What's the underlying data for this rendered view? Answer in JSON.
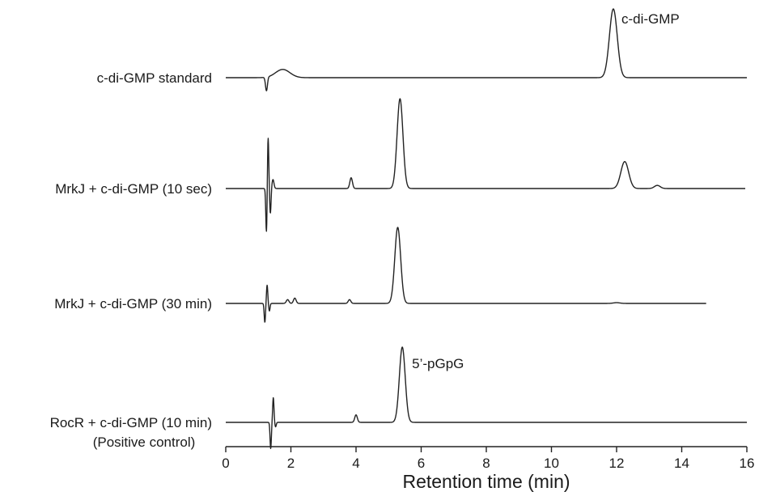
{
  "chart_data": {
    "type": "line",
    "title": "",
    "xlabel": "Retention time (min)",
    "ylabel": "",
    "xlim": [
      0,
      16
    ],
    "xticks": [
      "0",
      "2",
      "4",
      "6",
      "8",
      "10",
      "12",
      "14",
      "16"
    ],
    "grid": false,
    "series": [
      {
        "name": "c-di-GMP standard",
        "x_end": 16,
        "peaks": [
          {
            "x": 1.25,
            "height": -0.2,
            "width": 0.03
          },
          {
            "x": 1.75,
            "height": 0.12,
            "width": 0.22
          },
          {
            "x": 11.9,
            "height": 1.0,
            "width": 0.12
          }
        ]
      },
      {
        "name": "MrkJ + c-di-GMP (10 sec)",
        "x_end": 15.95,
        "peaks": [
          {
            "x": 1.25,
            "height": -0.5,
            "width": 0.02
          },
          {
            "x": 1.3,
            "height": 0.58,
            "width": 0.02
          },
          {
            "x": 1.37,
            "height": -0.28,
            "width": 0.02
          },
          {
            "x": 1.45,
            "height": 0.1,
            "width": 0.03
          },
          {
            "x": 3.85,
            "height": 0.12,
            "width": 0.04
          },
          {
            "x": 5.35,
            "height": 1.0,
            "width": 0.09
          },
          {
            "x": 12.25,
            "height": 0.3,
            "width": 0.12
          },
          {
            "x": 13.25,
            "height": 0.035,
            "width": 0.09
          }
        ]
      },
      {
        "name": "MrkJ + c-di-GMP (30 min)",
        "x_end": 14.75,
        "peaks": [
          {
            "x": 1.2,
            "height": -0.25,
            "width": 0.02
          },
          {
            "x": 1.27,
            "height": 0.24,
            "width": 0.02
          },
          {
            "x": 1.34,
            "height": -0.1,
            "width": 0.02
          },
          {
            "x": 1.9,
            "height": 0.05,
            "width": 0.04
          },
          {
            "x": 2.12,
            "height": 0.07,
            "width": 0.04
          },
          {
            "x": 3.8,
            "height": 0.05,
            "width": 0.04
          },
          {
            "x": 5.28,
            "height": 1.0,
            "width": 0.09
          },
          {
            "x": 12.0,
            "height": 0.01,
            "width": 0.1
          }
        ]
      },
      {
        "name": "RocR + c-di-GMP (10 min)",
        "x_end": 16,
        "peaks": [
          {
            "x": 1.38,
            "height": -0.35,
            "width": 0.02
          },
          {
            "x": 1.46,
            "height": 0.33,
            "width": 0.02
          },
          {
            "x": 1.53,
            "height": -0.06,
            "width": 0.02
          },
          {
            "x": 4.0,
            "height": 0.1,
            "width": 0.04
          },
          {
            "x": 5.42,
            "height": 1.0,
            "width": 0.09
          }
        ]
      }
    ],
    "annotations": [
      {
        "text": "c-di-GMP",
        "series": 0,
        "near_x": 11.9
      },
      {
        "text": "5’-pGpG",
        "series": 3,
        "near_x": 5.42
      }
    ],
    "footnote": "(Positive control)"
  }
}
